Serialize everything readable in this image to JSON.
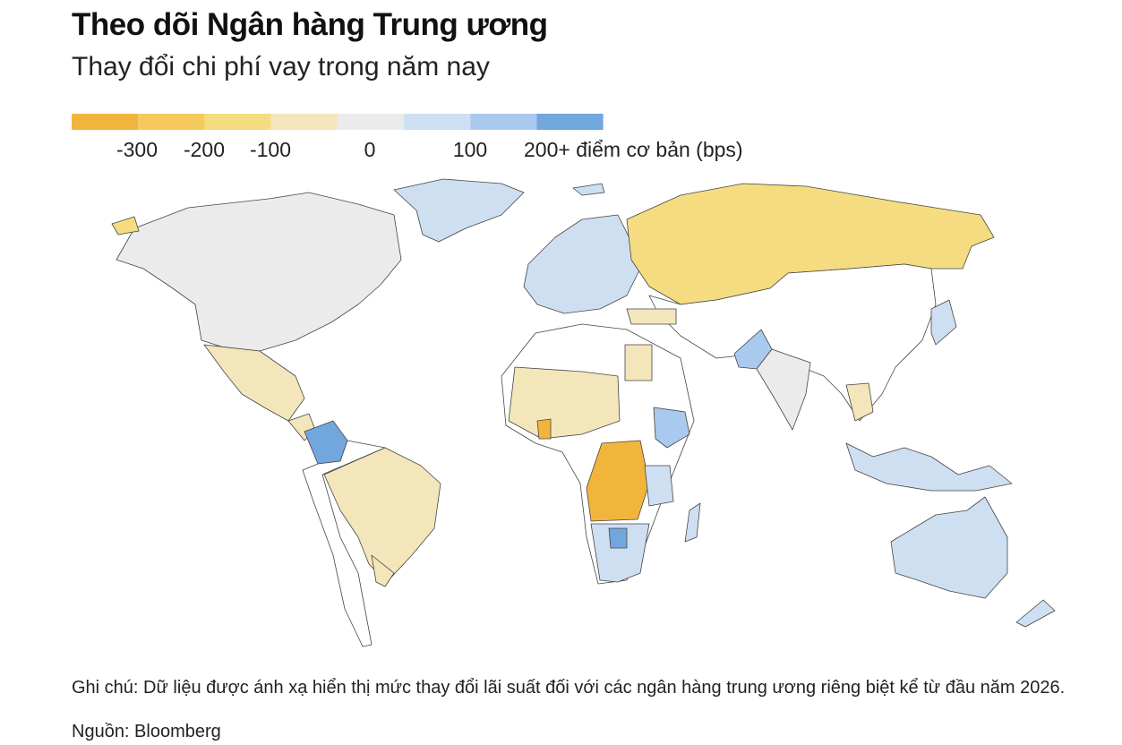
{
  "header": {
    "title": "Theo dõi Ngân hàng Trung ương",
    "subtitle": "Thay đổi chi phí vay trong năm nay"
  },
  "legend": {
    "colors": [
      "#f2b53c",
      "#f5c95e",
      "#f5dc80",
      "#f3e6bb",
      "#ebebeb",
      "#cfdff2",
      "#a9c9ee",
      "#72a7de"
    ],
    "labels": [
      "-300",
      "-200",
      "-100",
      "0",
      "100",
      "200+ điểm cơ bản (bps)"
    ]
  },
  "footer": {
    "note": "Ghi chú: Dữ liệu được ánh xạ hiển thị mức thay đổi lãi suất đối với các ngân hàng trung ương riêng biệt kể từ đầu năm 2026.",
    "source": "Nguồn: Bloomberg"
  }
}
